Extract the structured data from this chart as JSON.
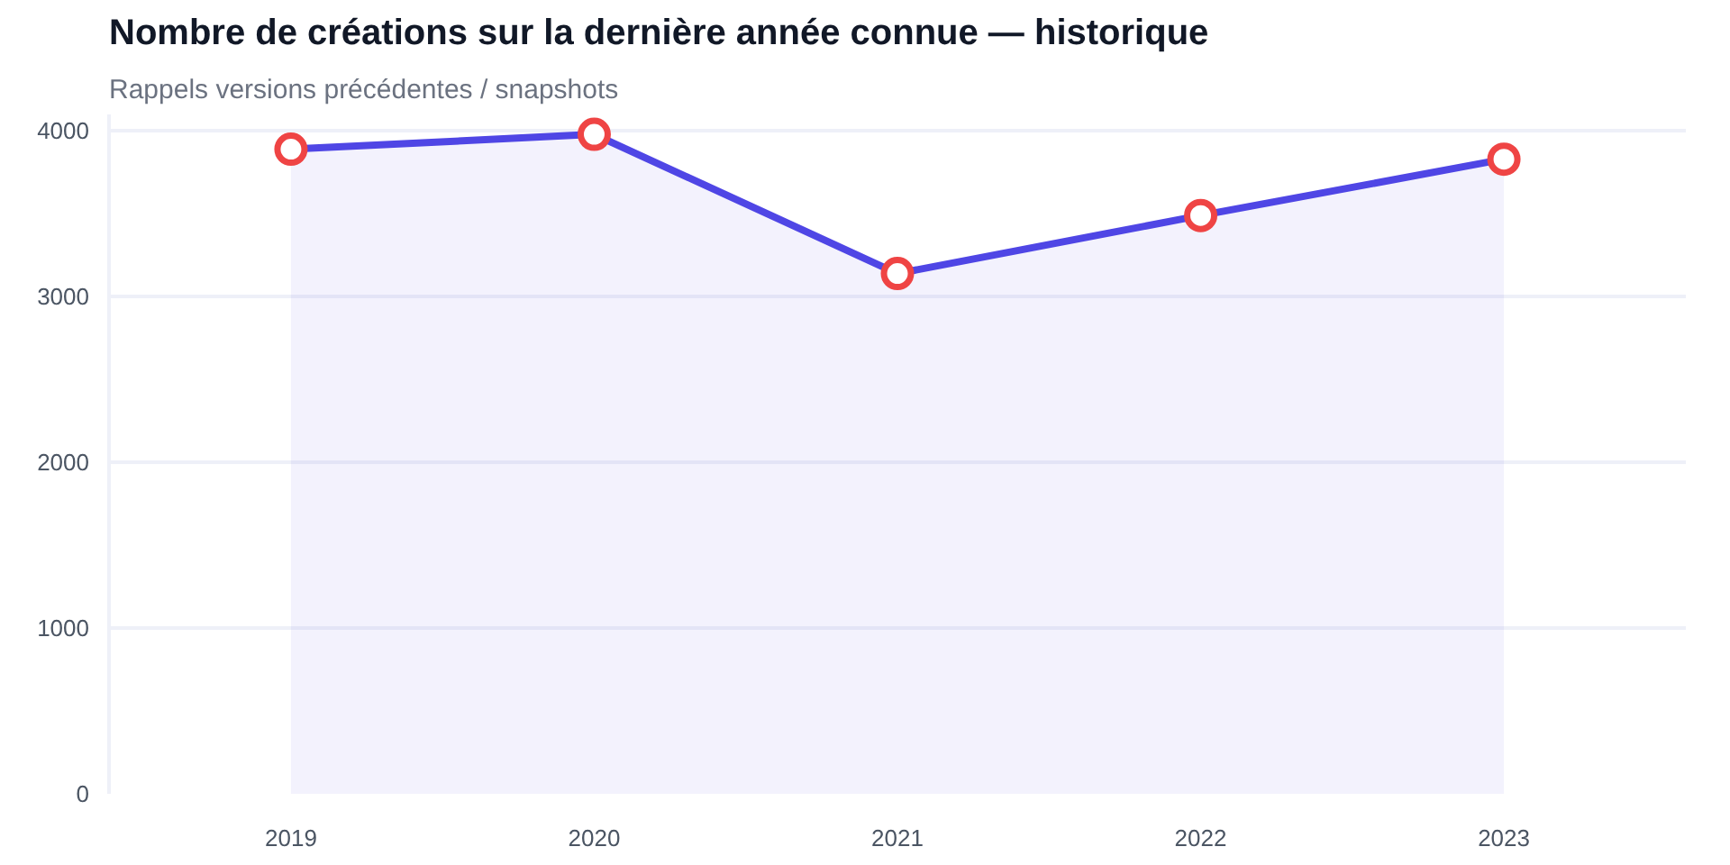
{
  "chart_data": {
    "type": "area",
    "title": "Nombre de créations sur la dernière année connue — historique",
    "subtitle": "Rappels versions précédentes / snapshots",
    "categories": [
      "2019",
      "2020",
      "2021",
      "2022",
      "2023"
    ],
    "series": [
      {
        "color": "#4f46e5",
        "values": [
          3890,
          3980,
          3140,
          3490,
          3830
        ]
      }
    ],
    "ylim": [
      0,
      4100
    ],
    "yticks": [
      0,
      1000,
      2000,
      3000,
      4000
    ],
    "grid": "y",
    "marker": "circle",
    "line_style": "solid"
  }
}
